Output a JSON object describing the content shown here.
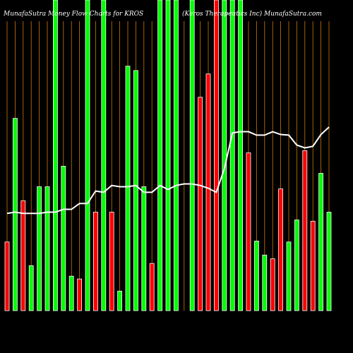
{
  "title_left": "MunafaSutra  Money Flow  Charts for KROS",
  "title_right": "(Keros Therapeutics Inc)  MunafaSutra.com",
  "colors": {
    "background": "#000000",
    "up": "#00ff00",
    "down": "#ff0000",
    "bar_outline": "#ffffff",
    "grid": "#cc7a00",
    "line": "#ffffff",
    "title": "#ffffff"
  },
  "chart_data": {
    "type": "bar",
    "x_tick_labels_note": "x tick labels are rotated and too small to read at this resolution, so none are given",
    "values": [
      {
        "v": 0.221,
        "c": "down"
      },
      {
        "v": 0.619,
        "c": "up"
      },
      {
        "v": 0.354,
        "c": "down"
      },
      {
        "v": 0.145,
        "c": "up"
      },
      {
        "v": 0.399,
        "c": "up"
      },
      {
        "v": 0.399,
        "c": "up"
      },
      {
        "v": 1.0,
        "c": "up"
      },
      {
        "v": 0.465,
        "c": "up"
      },
      {
        "v": 0.111,
        "c": "up"
      },
      {
        "v": 0.102,
        "c": "down"
      },
      {
        "v": 1.0,
        "c": "up"
      },
      {
        "v": 0.317,
        "c": "down"
      },
      {
        "v": 1.0,
        "c": "up"
      },
      {
        "v": 0.317,
        "c": "down"
      },
      {
        "v": 0.063,
        "c": "up"
      },
      {
        "v": 0.787,
        "c": "up"
      },
      {
        "v": 0.773,
        "c": "up"
      },
      {
        "v": 0.399,
        "c": "up"
      },
      {
        "v": 0.152,
        "c": "down"
      },
      {
        "v": 1.0,
        "c": "up"
      },
      {
        "v": 1.0,
        "c": "up"
      },
      {
        "v": 1.0,
        "c": "up"
      },
      {
        "v": 0.0,
        "c": "up"
      },
      {
        "v": 1.0,
        "c": "up"
      },
      {
        "v": 0.687,
        "c": "down"
      },
      {
        "v": 0.762,
        "c": "down"
      },
      {
        "v": 1.0,
        "c": "down"
      },
      {
        "v": 1.0,
        "c": "up"
      },
      {
        "v": 1.0,
        "c": "up"
      },
      {
        "v": 1.0,
        "c": "up"
      },
      {
        "v": 0.508,
        "c": "down"
      },
      {
        "v": 0.224,
        "c": "up"
      },
      {
        "v": 0.179,
        "c": "up"
      },
      {
        "v": 0.167,
        "c": "down"
      },
      {
        "v": 0.392,
        "c": "down"
      },
      {
        "v": 0.221,
        "c": "up"
      },
      {
        "v": 0.292,
        "c": "up"
      },
      {
        "v": 0.515,
        "c": "down"
      },
      {
        "v": 0.288,
        "c": "down"
      },
      {
        "v": 0.442,
        "c": "up"
      },
      {
        "v": 0.317,
        "c": "up"
      }
    ],
    "line_values": [
      0.313,
      0.317,
      0.313,
      0.313,
      0.313,
      0.317,
      0.317,
      0.326,
      0.326,
      0.345,
      0.345,
      0.385,
      0.381,
      0.403,
      0.399,
      0.399,
      0.403,
      0.381,
      0.381,
      0.403,
      0.39,
      0.403,
      0.408,
      0.408,
      0.403,
      0.394,
      0.381,
      0.457,
      0.572,
      0.576,
      0.576,
      0.565,
      0.565,
      0.576,
      0.567,
      0.565,
      0.533,
      0.524,
      0.529,
      0.567,
      0.591
    ]
  }
}
